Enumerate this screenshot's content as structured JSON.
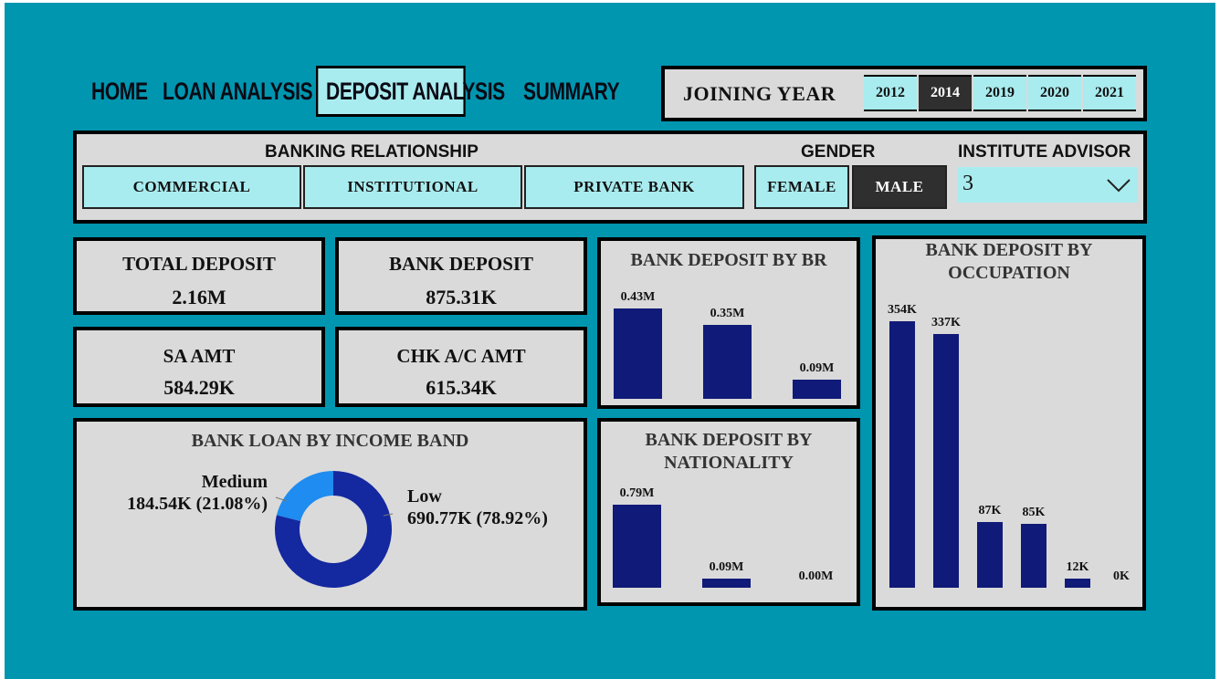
{
  "nav": {
    "home": "HOME",
    "loan_analysis": "LOAN ANALYSIS",
    "deposit_analysis": "DEPOSIT ANALYSIS",
    "summary": "SUMMARY"
  },
  "joining_year": {
    "label": "JOINING YEAR",
    "years": [
      "2012",
      "2014",
      "2019",
      "2020",
      "2021"
    ],
    "selected": "2014"
  },
  "filters": {
    "banking_relationship": {
      "label": "BANKING RELATIONSHIP",
      "options": [
        "COMMERCIAL",
        "INSTITUTIONAL",
        "PRIVATE BANK"
      ]
    },
    "gender": {
      "label": "GENDER",
      "options": [
        "FEMALE",
        "MALE"
      ],
      "selected": "MALE"
    },
    "institute_advisor": {
      "label": "INSTITUTE ADVISOR",
      "value": "3"
    }
  },
  "kpis": {
    "total_deposit": {
      "label": "TOTAL DEPOSIT",
      "value": "2.16M"
    },
    "bank_deposit": {
      "label": "BANK DEPOSIT",
      "value": "875.31K"
    },
    "sa_amt": {
      "label": "SA AMT",
      "value": "584.29K"
    },
    "chk_amt": {
      "label": "CHK A/C AMT",
      "value": "615.34K"
    }
  },
  "colors": {
    "background": "#0096b0",
    "panel": "#dadada",
    "slicer": "#a9ecef",
    "selected": "#2f2f2f",
    "bar": "#101a78",
    "donut_low": "#1428a0",
    "donut_medium": "#1e8cf0"
  },
  "icons": {
    "dropdown": "chevron-down-icon"
  },
  "chart_data": [
    {
      "type": "bar",
      "title": "BANK DEPOSIT BY BR",
      "values": [
        0.43,
        0.35,
        0.09
      ],
      "labels": [
        "0.43M",
        "0.35M",
        "0.09M"
      ]
    },
    {
      "type": "bar",
      "title": "BANK DEPOSIT BY NATIONALITY",
      "values": [
        0.79,
        0.09,
        0.0
      ],
      "labels": [
        "0.79M",
        "0.09M",
        "0.00M"
      ]
    },
    {
      "type": "bar",
      "title": "BANK DEPOSIT BY OCCUPATION",
      "values": [
        354,
        337,
        87,
        85,
        12,
        0
      ],
      "labels": [
        "354K",
        "337K",
        "87K",
        "85K",
        "12K",
        "0K"
      ]
    },
    {
      "type": "pie",
      "title": "BANK LOAN BY INCOME BAND",
      "slices": [
        {
          "name": "Low",
          "value": 690.77,
          "label": "690.77K (78.92%)"
        },
        {
          "name": "Medium",
          "value": 184.54,
          "label": "184.54K (21.08%)"
        }
      ]
    }
  ]
}
